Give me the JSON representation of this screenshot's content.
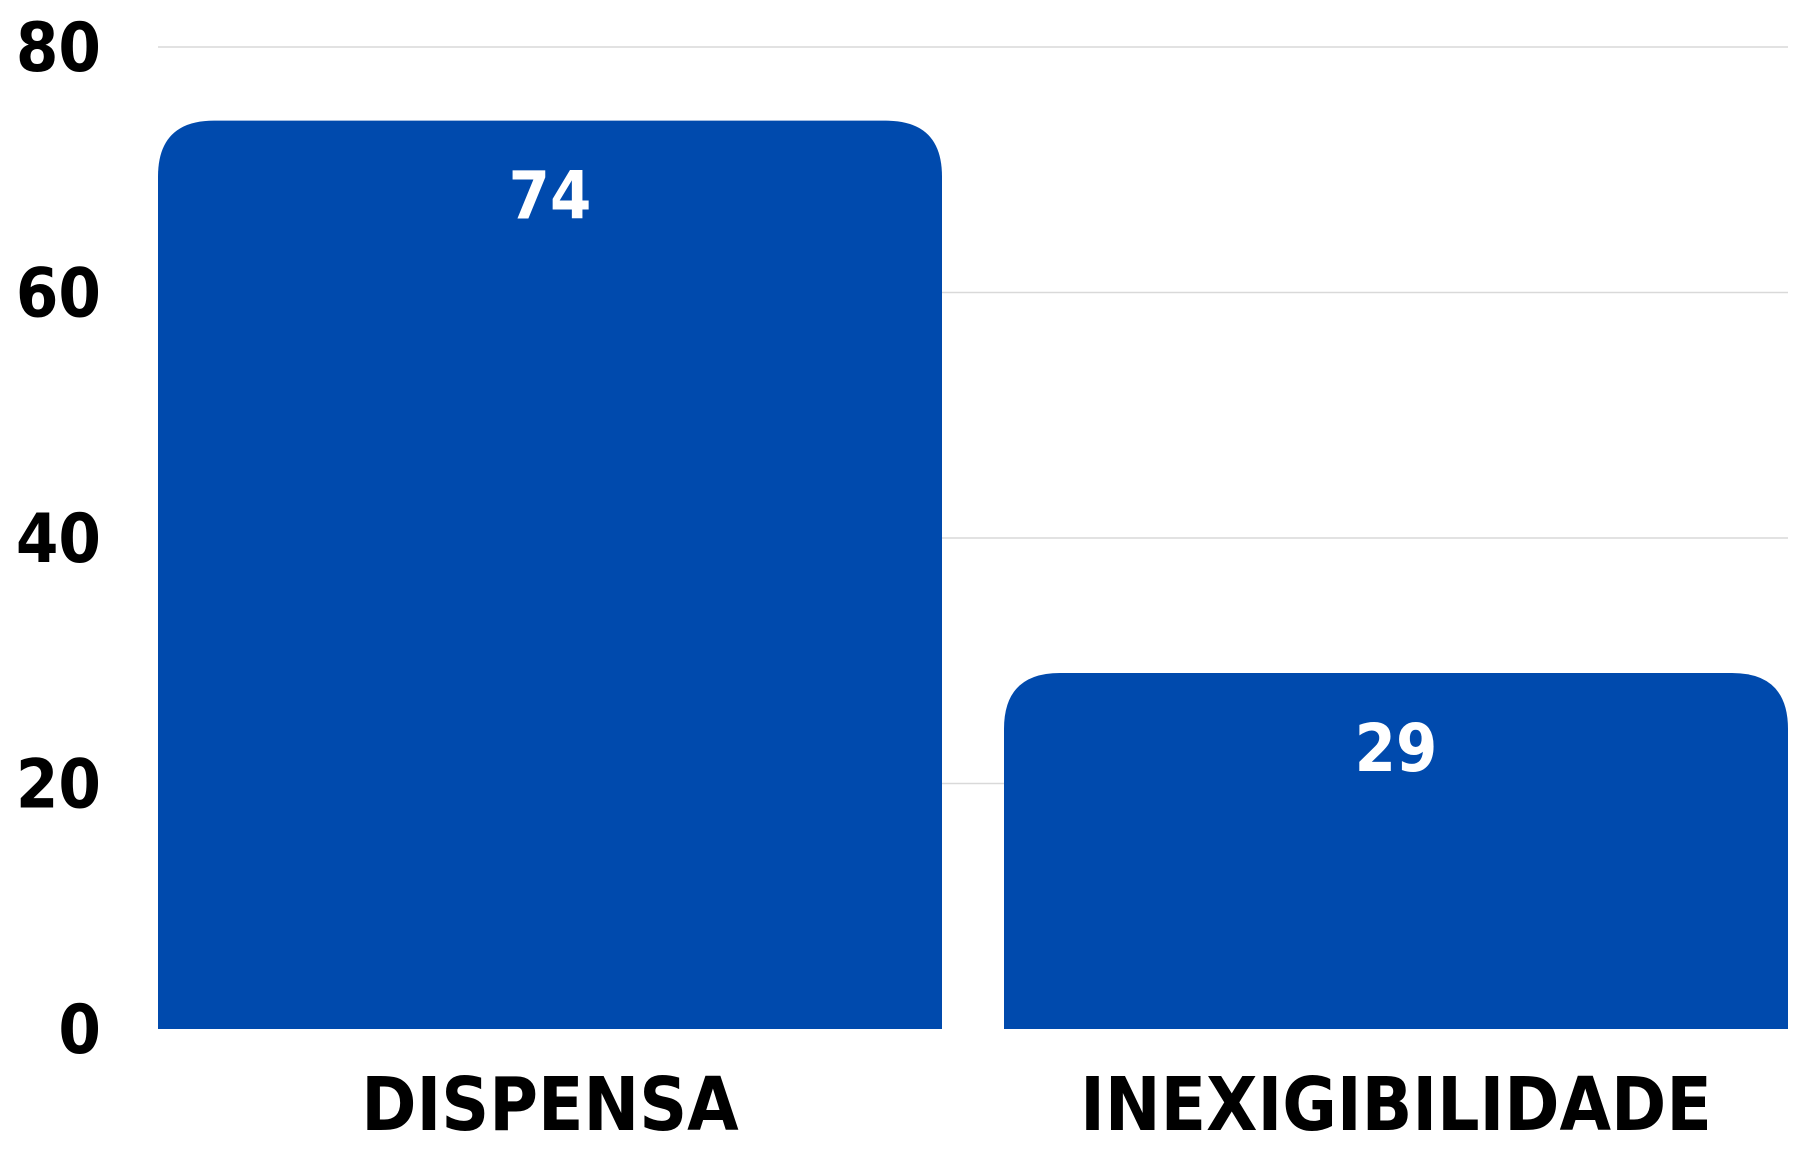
{
  "chart_data": {
    "type": "bar",
    "title": "",
    "xlabel": "",
    "ylabel": "",
    "categories": [
      "DISPENSA",
      "INEXIGIBILIDADE"
    ],
    "values": [
      74,
      29
    ],
    "value_labels": [
      "74",
      "29"
    ],
    "ylim": [
      0,
      80
    ],
    "yticks": [
      0,
      20,
      40,
      60,
      80
    ],
    "ytick_labels": [
      "0",
      "20",
      "40",
      "60",
      "80"
    ],
    "grid": true,
    "legend": "none",
    "colors": {
      "bar": "#004aad",
      "grid": "#d9d9d9",
      "tick_text": "#000000",
      "value_text": "#ffffff"
    }
  }
}
